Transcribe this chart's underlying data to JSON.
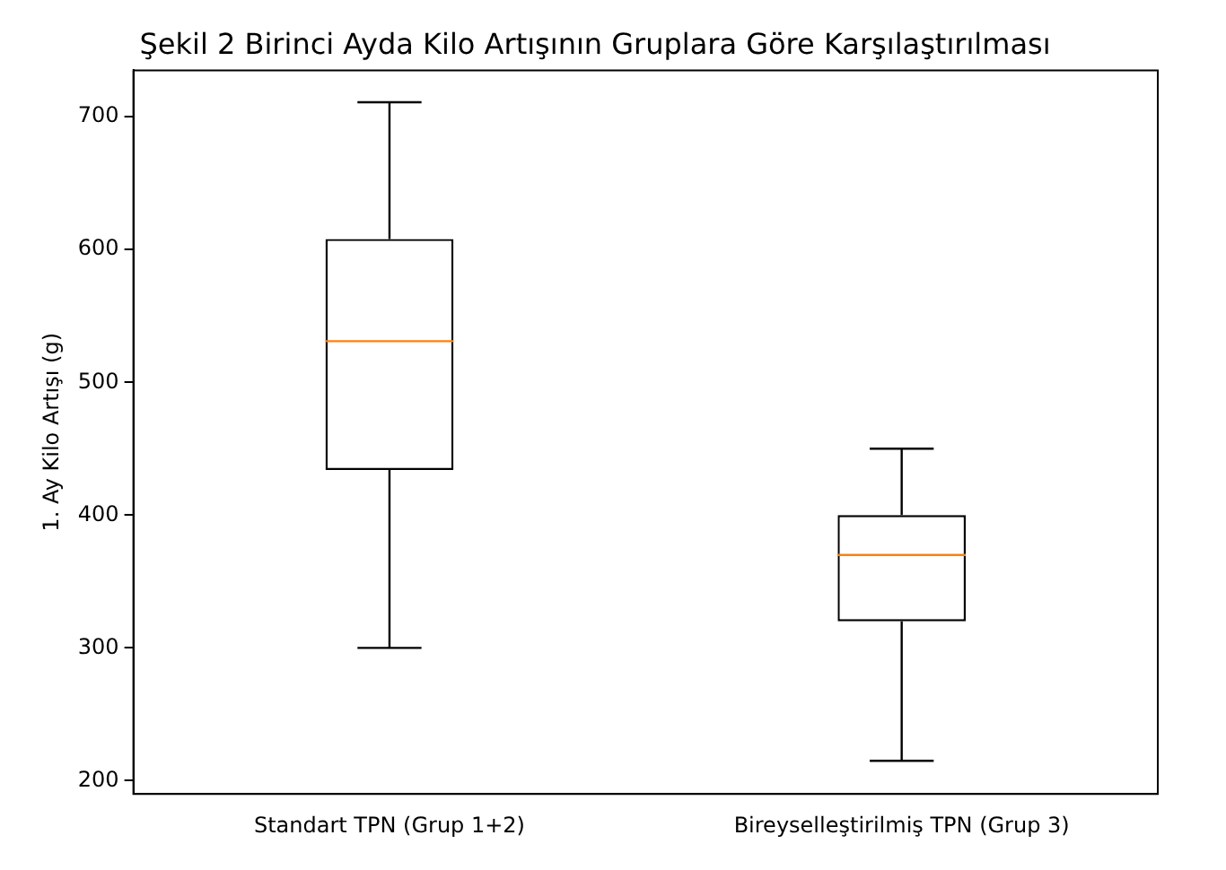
{
  "chart_data": {
    "type": "box",
    "title": "Şekil 2 Birinci Ayda Kilo Artışının Gruplara Göre Karşılaştırılması",
    "ylabel": "1. Ay Kilo Artışı (g)",
    "categories": [
      "Standart TPN (Grup 1+2)",
      "Bireyselleştirilmiş TPN (Grup 3)"
    ],
    "boxes": [
      {
        "low": 300,
        "q1": 434,
        "median": 531,
        "q3": 608,
        "high": 711
      },
      {
        "low": 215,
        "q1": 320,
        "median": 370,
        "q3": 400,
        "high": 450
      }
    ],
    "color": "#000000",
    "ylim": [
      190,
      735
    ],
    "yticks": [
      200,
      300,
      400,
      500,
      600,
      700
    ],
    "grid": false,
    "legend": false
  }
}
